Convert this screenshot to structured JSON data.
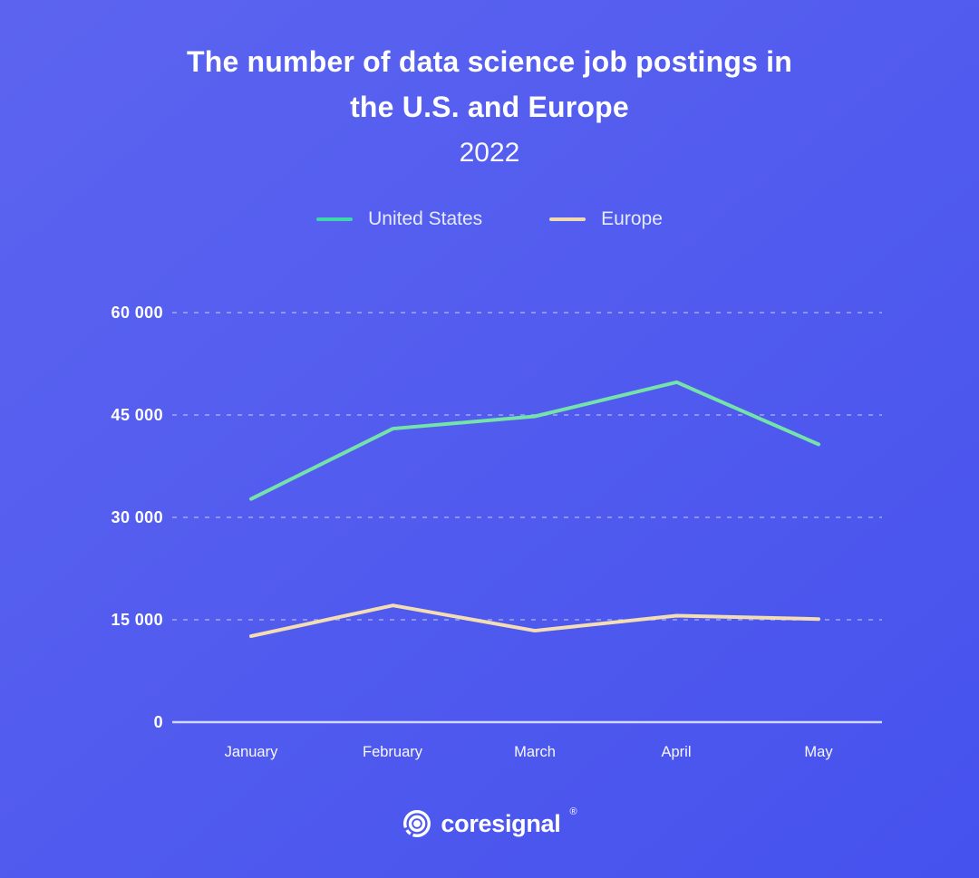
{
  "page": {
    "background_top": "#5c64ef",
    "background_bottom": "#4652ee"
  },
  "header": {
    "title_line1": "The number of data science job postings in",
    "title_line2": "the U.S. and Europe",
    "subtitle": "2022"
  },
  "legend": [
    {
      "label": "United States",
      "color": "#3cd8ac"
    },
    {
      "label": "Europe",
      "color": "#f0d9b2"
    }
  ],
  "chart_data": {
    "type": "line",
    "title": "The number of data science job postings in the U.S. and Europe",
    "subtitle": "2022",
    "x": [
      "January",
      "February",
      "March",
      "April",
      "May"
    ],
    "series": [
      {
        "name": "United States",
        "color": "#74e2a9",
        "values": [
          32700,
          43000,
          44800,
          49800,
          40700
        ]
      },
      {
        "name": "Europe",
        "color": "#f2ddb4",
        "values": [
          12600,
          17100,
          13400,
          15600,
          15100
        ]
      }
    ],
    "ylim": [
      0,
      60000
    ],
    "yticks": [
      0,
      15000,
      30000,
      45000,
      60000
    ],
    "ytick_labels": [
      "0",
      "15 000",
      "30 000",
      "45 000",
      "60 000"
    ],
    "grid": "horizontal dashed gridlines, solid zero axis",
    "legend_position": "top center",
    "grid_color": "rgba(255,255,255,0.35)",
    "axis_color": "rgba(255,255,255,0.75)"
  },
  "branding": {
    "logo_text": "coresignal",
    "registered_mark": "®"
  }
}
